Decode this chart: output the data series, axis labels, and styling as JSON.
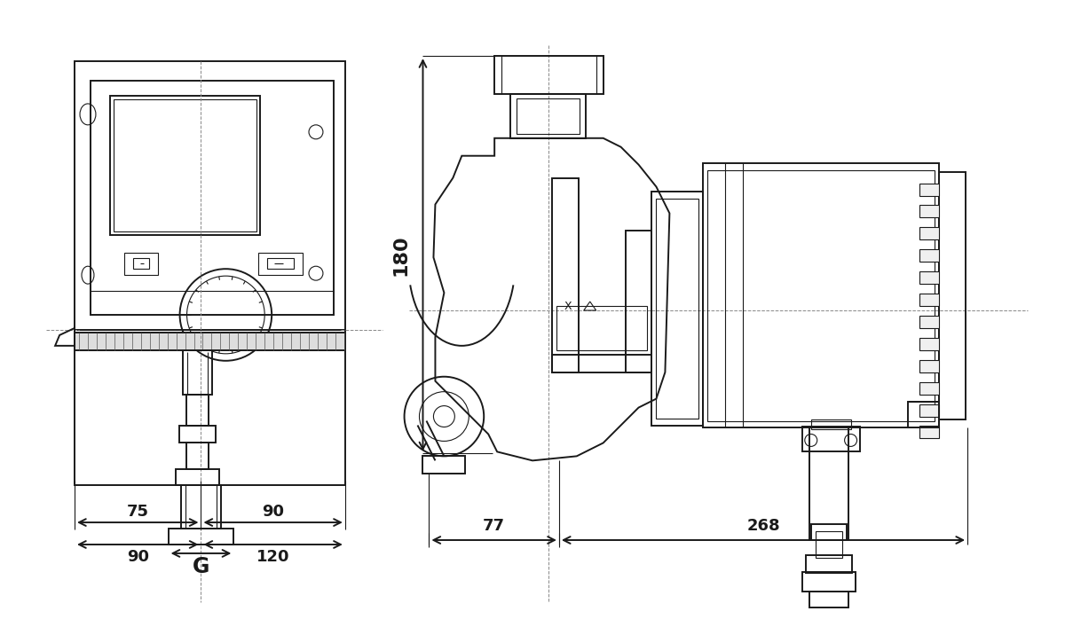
{
  "background_color": "#ffffff",
  "lc": "#1a1a1a",
  "lw": 1.4,
  "tlw": 0.8,
  "clw": 0.7,
  "fig_width": 12.0,
  "fig_height": 7.07,
  "dpi": 100,
  "G": "G",
  "d75": "75",
  "d90a": "90",
  "d90b": "90",
  "d120": "120",
  "d77": "77",
  "d268": "268",
  "d180": "180",
  "fs_dim": 13,
  "fs_G": 17
}
